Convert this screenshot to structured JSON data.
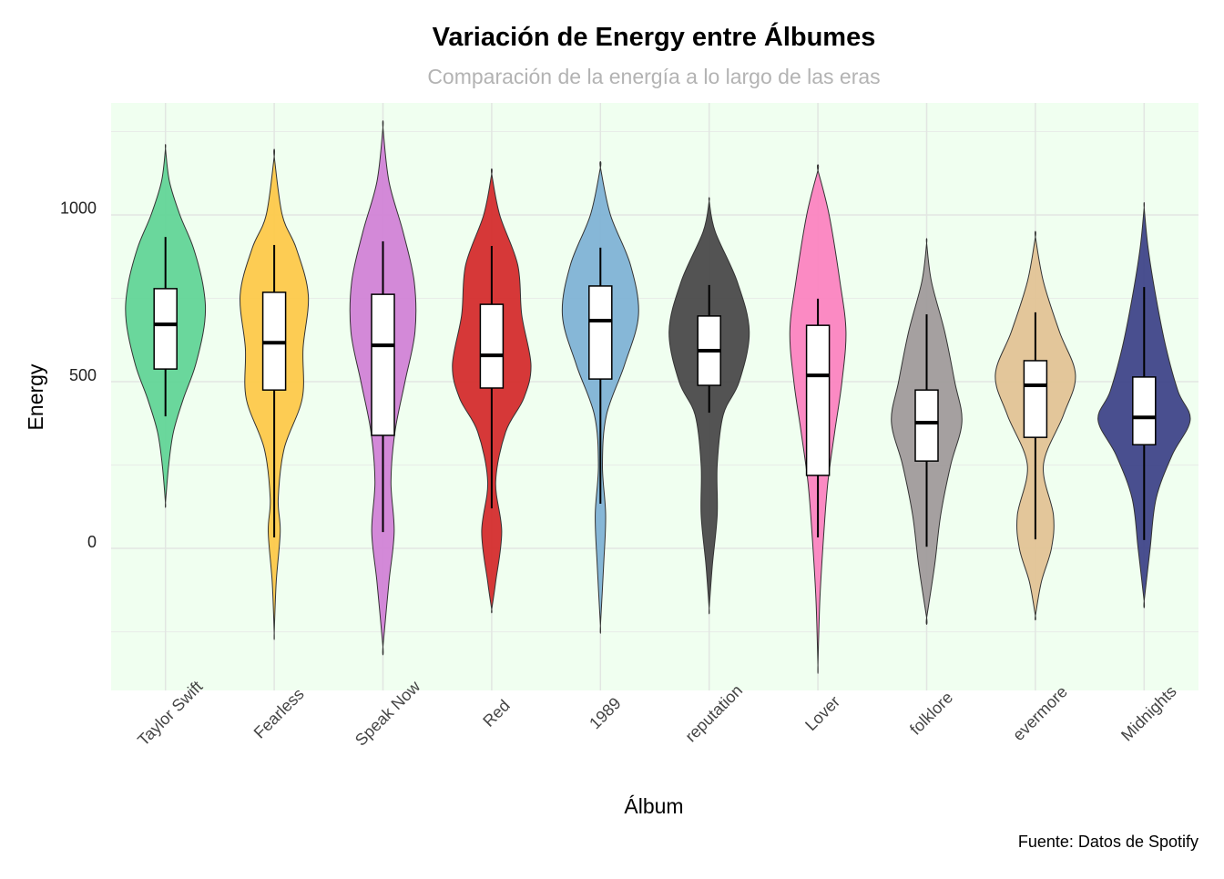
{
  "chart_data": {
    "type": "violin",
    "title": "Variación de Energy entre Álbumes",
    "subtitle": "Comparación de la energía a lo largo de las eras",
    "x_label": "Álbum",
    "y_label": "Energy",
    "caption": "Fuente: Datos de Spotify",
    "ylim": [
      -426,
      1336
    ],
    "yticks": [
      0,
      500,
      1000
    ],
    "minor_yticks": [
      -250,
      250,
      750,
      1250
    ],
    "grid": true,
    "background": "#f0fff0",
    "categories": [
      "Taylor Swift",
      "Fearless",
      "Speak Now",
      "Red",
      "1989",
      "reputation",
      "Lover",
      "folklore",
      "evermore",
      "Midnights"
    ],
    "colors": [
      "#62d597",
      "#fdc94a",
      "#d183d6",
      "#d42d2d",
      "#7fb3d5",
      "#4a4a4a",
      "#fb84c0",
      "#a09b9b",
      "#e2c395",
      "#3f4689"
    ],
    "boxes": [
      {
        "whisker_low": 396,
        "q1": 538,
        "median": 672,
        "q3": 779,
        "whisker_high": 934
      },
      {
        "whisker_low": 33,
        "q1": 475,
        "median": 617,
        "q3": 768,
        "whisker_high": 910
      },
      {
        "whisker_low": 49,
        "q1": 339,
        "median": 609,
        "q3": 762,
        "whisker_high": 921
      },
      {
        "whisker_low": 120,
        "q1": 481,
        "median": 579,
        "q3": 732,
        "whisker_high": 907
      },
      {
        "whisker_low": 134,
        "q1": 508,
        "median": 683,
        "q3": 787,
        "whisker_high": 902
      },
      {
        "whisker_low": 407,
        "q1": 489,
        "median": 593,
        "q3": 697,
        "whisker_high": 790
      },
      {
        "whisker_low": 33,
        "q1": 219,
        "median": 519,
        "q3": 669,
        "whisker_high": 749
      },
      {
        "whisker_low": 5,
        "q1": 262,
        "median": 377,
        "q3": 475,
        "whisker_high": 702
      },
      {
        "whisker_low": 27,
        "q1": 333,
        "median": 489,
        "q3": 563,
        "whisker_high": 708
      },
      {
        "whisker_low": 25,
        "q1": 311,
        "median": 393,
        "q3": 514,
        "whisker_high": 784
      }
    ],
    "violins": [
      {
        "density_y": [
          1199,
          1100,
          1000,
          900,
          780,
          680,
          550,
          450,
          350,
          250,
          137
        ],
        "density": [
          0,
          0.1,
          0.36,
          0.7,
          0.95,
          0.98,
          0.75,
          0.45,
          0.2,
          0.08,
          0
        ]
      },
      {
        "density_y": [
          1175,
          1000,
          900,
          760,
          600,
          450,
          300,
          150,
          50,
          -100,
          -254
        ],
        "density": [
          0,
          0.2,
          0.55,
          0.85,
          0.72,
          0.7,
          0.25,
          0.1,
          0.15,
          0.05,
          0
        ]
      },
      {
        "density_y": [
          1262,
          1100,
          950,
          800,
          650,
          500,
          350,
          200,
          50,
          -100,
          -295
        ],
        "density": [
          0,
          0.15,
          0.5,
          0.78,
          0.8,
          0.55,
          0.3,
          0.2,
          0.28,
          0.15,
          0
        ]
      },
      {
        "density_y": [
          1123,
          1000,
          850,
          700,
          550,
          450,
          350,
          200,
          50,
          -100,
          -183
        ],
        "density": [
          0,
          0.2,
          0.65,
          0.75,
          0.98,
          0.8,
          0.35,
          0.1,
          0.25,
          0.1,
          0
        ]
      },
      {
        "density_y": [
          1142,
          1000,
          850,
          700,
          550,
          400,
          250,
          100,
          -50,
          -232
        ],
        "density": [
          0,
          0.25,
          0.75,
          0.95,
          0.6,
          0.15,
          0.05,
          0.13,
          0.08,
          0
        ]
      },
      {
        "density_y": [
          1041,
          950,
          800,
          650,
          500,
          400,
          250,
          100,
          -50,
          -180
        ],
        "density": [
          0,
          0.15,
          0.7,
          1.0,
          0.75,
          0.35,
          0.2,
          0.2,
          0.08,
          0
        ]
      },
      {
        "density_y": [
          1134,
          1000,
          800,
          650,
          500,
          350,
          200,
          50,
          -150,
          -350
        ],
        "density": [
          0,
          0.28,
          0.55,
          0.7,
          0.6,
          0.42,
          0.25,
          0.15,
          0.05,
          0
        ]
      },
      {
        "density_y": [
          915,
          800,
          650,
          500,
          380,
          250,
          100,
          -50,
          -208
        ],
        "density": [
          0,
          0.12,
          0.45,
          0.7,
          0.88,
          0.6,
          0.35,
          0.2,
          0
        ]
      },
      {
        "density_y": [
          934,
          800,
          650,
          520,
          400,
          250,
          100,
          0,
          -100,
          -202
        ],
        "density": [
          0,
          0.2,
          0.6,
          1.0,
          0.7,
          0.2,
          0.45,
          0.4,
          0.15,
          0
        ]
      },
      {
        "density_y": [
          1022,
          900,
          750,
          600,
          470,
          385,
          280,
          150,
          0,
          -158
        ],
        "density": [
          0,
          0.1,
          0.3,
          0.55,
          0.85,
          1.15,
          0.7,
          0.3,
          0.15,
          0
        ]
      }
    ]
  }
}
